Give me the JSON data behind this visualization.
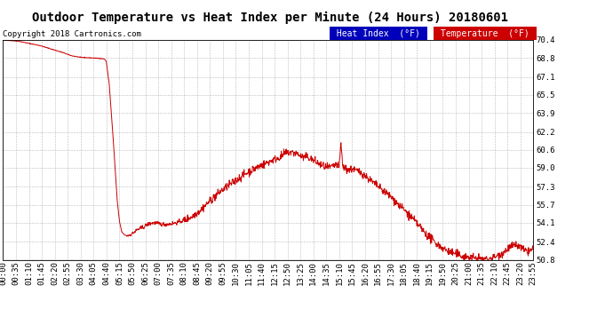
{
  "title": "Outdoor Temperature vs Heat Index per Minute (24 Hours) 20180601",
  "copyright": "Copyright 2018 Cartronics.com",
  "legend_heat_label": "Heat Index  (°F)",
  "legend_temp_label": "Temperature  (°F)",
  "legend_heat_bg": "#0000bb",
  "legend_temp_bg": "#cc0000",
  "line_color": "#cc0000",
  "background_color": "#ffffff",
  "grid_color": "#aaaaaa",
  "ylim": [
    50.8,
    70.4
  ],
  "yticks": [
    50.8,
    52.4,
    54.1,
    55.7,
    57.3,
    59.0,
    60.6,
    62.2,
    63.9,
    65.5,
    67.1,
    68.8,
    70.4
  ],
  "xtick_labels": [
    "00:00",
    "00:35",
    "01:10",
    "01:45",
    "02:20",
    "02:55",
    "03:30",
    "04:05",
    "04:40",
    "05:15",
    "05:50",
    "06:25",
    "07:00",
    "07:35",
    "08:10",
    "08:45",
    "09:20",
    "09:55",
    "10:30",
    "11:05",
    "11:40",
    "12:15",
    "12:50",
    "13:25",
    "14:00",
    "14:35",
    "15:10",
    "15:45",
    "16:20",
    "16:55",
    "17:30",
    "18:05",
    "18:40",
    "19:15",
    "19:50",
    "20:25",
    "21:00",
    "21:35",
    "22:10",
    "22:45",
    "23:20",
    "23:55"
  ],
  "title_fontsize": 10,
  "copyright_fontsize": 6.5,
  "tick_fontsize": 6.5,
  "legend_fontsize": 7
}
